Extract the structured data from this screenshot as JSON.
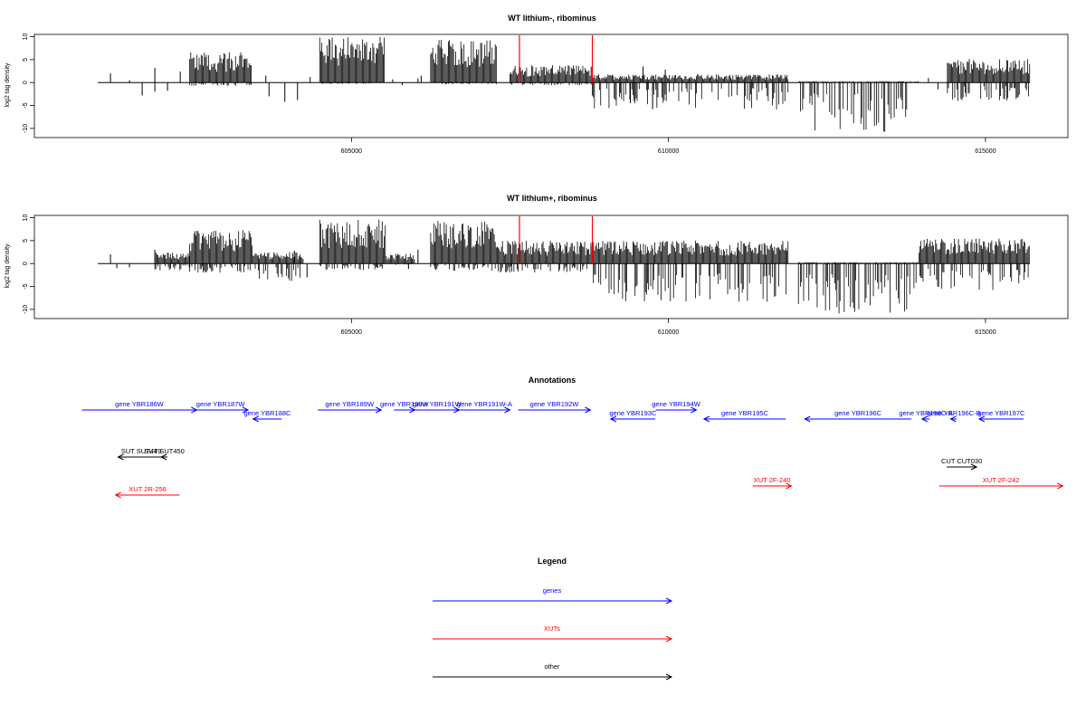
{
  "chart_data": [
    {
      "type": "bar",
      "title": "WT lithium-, ribominus",
      "ylabel": "log2 tag density",
      "xlabel": "",
      "xlim": [
        600000,
        616300
      ],
      "ylim": [
        -12,
        10.5
      ],
      "yticks": [
        10,
        5,
        0,
        -5,
        -10
      ],
      "xticks": [
        {
          "value": 605000,
          "label": "605000"
        },
        {
          "value": 610000,
          "label": "610000"
        },
        {
          "value": 615000,
          "label": "615000"
        }
      ],
      "grid": false,
      "baseline": {
        "from": 601000,
        "to": 615700,
        "y": 0
      },
      "bar_color": "#000000",
      "highlight_color": "#ff0000",
      "highlights": [
        607650,
        608800
      ],
      "highlight_value": 10.3,
      "regions": [
        {
          "from": 602450,
          "to": 603420,
          "max": 6.6,
          "min": -0.8
        },
        {
          "from": 604500,
          "to": 605530,
          "max": 10.0,
          "min": -0.3
        },
        {
          "from": 606250,
          "to": 607300,
          "max": 9.4,
          "min": -0.4
        },
        {
          "from": 607500,
          "to": 608800,
          "max": 3.8,
          "min": -0.6
        },
        {
          "from": 608800,
          "to": 611900,
          "max": 1.8,
          "min": -6.0
        },
        {
          "from": 612050,
          "to": 613950,
          "max": 0.3,
          "min": -10.8
        },
        {
          "from": 614400,
          "to": 615700,
          "max": 5.2,
          "min": -4.0
        }
      ],
      "sparse": [
        [
          601700,
          -2.8
        ],
        [
          601900,
          -2.0
        ],
        [
          602100,
          -1.8
        ],
        [
          601200,
          2.0
        ],
        [
          601900,
          3.2
        ],
        [
          603700,
          -3.0
        ],
        [
          603950,
          -4.2
        ],
        [
          604150,
          -3.8
        ],
        [
          603650,
          1.5
        ],
        [
          604350,
          1.2
        ],
        [
          605800,
          -0.6
        ],
        [
          606050,
          0.9
        ],
        [
          605650,
          0.7
        ],
        [
          606100,
          1.5
        ],
        [
          609400,
          -4.5
        ],
        [
          609600,
          3.5
        ],
        [
          609750,
          -5.8
        ],
        [
          609950,
          2.8
        ],
        [
          614100,
          1.0
        ],
        [
          614250,
          -1.5
        ],
        [
          601500,
          0.5
        ],
        [
          602300,
          2.4
        ]
      ]
    },
    {
      "type": "bar",
      "title": "WT lithium+, ribominus",
      "ylabel": "log2 tag density",
      "xlabel": "",
      "xlim": [
        600000,
        616300
      ],
      "ylim": [
        -12,
        10.5
      ],
      "yticks": [
        10,
        5,
        0,
        -5,
        -10
      ],
      "xticks": [
        {
          "value": 605000,
          "label": "605000"
        },
        {
          "value": 610000,
          "label": "610000"
        },
        {
          "value": 615000,
          "label": "615000"
        }
      ],
      "grid": false,
      "baseline": {
        "from": 601000,
        "to": 615700,
        "y": 0
      },
      "bar_color": "#000000",
      "highlight_color": "#ff0000",
      "highlights": [
        607650,
        608800
      ],
      "highlight_value": 10.3,
      "regions": [
        {
          "from": 601900,
          "to": 602450,
          "max": 2.4,
          "min": -1.5
        },
        {
          "from": 602450,
          "to": 603450,
          "max": 7.4,
          "min": -2.0
        },
        {
          "from": 603450,
          "to": 604250,
          "max": 2.5,
          "min": -3.8
        },
        {
          "from": 604500,
          "to": 605550,
          "max": 9.6,
          "min": -1.5
        },
        {
          "from": 605550,
          "to": 606000,
          "max": 2.2,
          "min": -0.5
        },
        {
          "from": 606250,
          "to": 607300,
          "max": 9.3,
          "min": -1.6
        },
        {
          "from": 607300,
          "to": 608800,
          "max": 5.0,
          "min": -2.0
        },
        {
          "from": 608800,
          "to": 611900,
          "max": 5.0,
          "min": -8.5
        },
        {
          "from": 612050,
          "to": 613950,
          "max": 0.3,
          "min": -11.0
        },
        {
          "from": 613950,
          "to": 615700,
          "max": 5.5,
          "min": -5.8
        }
      ],
      "sparse": [
        [
          601200,
          2.0
        ],
        [
          601500,
          -0.8
        ],
        [
          601900,
          3.0
        ],
        [
          601300,
          -1.0
        ],
        [
          604100,
          2.8
        ],
        [
          604300,
          -3.0
        ],
        [
          605900,
          -1.2
        ],
        [
          606050,
          3.0
        ]
      ]
    }
  ],
  "annotations": {
    "title": "Annotations",
    "tracks": [
      {
        "label": "gene YBR186W",
        "from": 600750,
        "to": 602560,
        "strand": "+",
        "color": "#0000ff",
        "row": 1
      },
      {
        "label": "gene YBR187W",
        "from": 602500,
        "to": 603370,
        "strand": "+",
        "color": "#0000ff",
        "row": 1
      },
      {
        "label": "gene YBR188C",
        "from": 603450,
        "to": 603900,
        "strand": "-",
        "color": "#0000ff",
        "row": 2
      },
      {
        "label": "gene YBR189W",
        "from": 604470,
        "to": 605470,
        "strand": "+",
        "color": "#0000ff",
        "row": 1
      },
      {
        "label": "gene YBR190W",
        "from": 605670,
        "to": 606000,
        "strand": "+",
        "color": "#0000ff",
        "row": 1
      },
      {
        "label": "gene YBR191W",
        "from": 606000,
        "to": 606700,
        "strand": "+",
        "color": "#0000ff",
        "row": 1
      },
      {
        "label": "gene YBR191W-A",
        "from": 606700,
        "to": 607500,
        "strand": "+",
        "color": "#0000ff",
        "row": 1
      },
      {
        "label": "gene YBR192W",
        "from": 607630,
        "to": 608770,
        "strand": "+",
        "color": "#0000ff",
        "row": 1
      },
      {
        "label": "gene YBR193C",
        "from": 609090,
        "to": 609790,
        "strand": "-",
        "color": "#0000ff",
        "row": 2
      },
      {
        "label": "gene YBR194W",
        "from": 609800,
        "to": 610440,
        "strand": "+",
        "color": "#0000ff",
        "row": 1
      },
      {
        "label": "gene YBR195C",
        "from": 610560,
        "to": 611850,
        "strand": "-",
        "color": "#0000ff",
        "row": 2
      },
      {
        "label": "gene YBR196C",
        "from": 612150,
        "to": 613830,
        "strand": "-",
        "color": "#0000ff",
        "row": 2
      },
      {
        "label": "gene YBR196C-A",
        "from": 614000,
        "to": 614120,
        "strand": "-",
        "color": "#0000ff",
        "row": 2
      },
      {
        "label": "gene YBR196C-B",
        "from": 614450,
        "to": 614550,
        "strand": "-",
        "color": "#0000ff",
        "row": 2
      },
      {
        "label": "gene YBR197C",
        "from": 614900,
        "to": 615600,
        "strand": "-",
        "color": "#0000ff",
        "row": 2
      },
      {
        "label": "SUT SUT449",
        "from": 601320,
        "to": 602050,
        "strand": "-",
        "color": "#000000",
        "row": 3
      },
      {
        "label": "SUT SUT450",
        "from": 602000,
        "to": 602100,
        "strand": "-",
        "color": "#000000",
        "row": 3
      },
      {
        "label": "CUT CUT030",
        "from": 614390,
        "to": 614860,
        "strand": "+",
        "color": "#000000",
        "row": 4
      },
      {
        "label": "XUT 2F-240",
        "from": 611330,
        "to": 611940,
        "strand": "+",
        "color": "#ff0000",
        "row": 5
      },
      {
        "label": "XUT 2F-242",
        "from": 614270,
        "to": 616220,
        "strand": "+",
        "color": "#ff0000",
        "row": 5
      },
      {
        "label": "XUT 2R-256",
        "from": 601280,
        "to": 602290,
        "strand": "-",
        "color": "#ff0000",
        "row": 6
      }
    ]
  },
  "legend": {
    "title": "Legend",
    "items": [
      {
        "label": "genes",
        "color": "#0000ff"
      },
      {
        "label": "XUTs",
        "color": "#ff0000"
      },
      {
        "label": "other",
        "color": "#000000"
      }
    ]
  }
}
